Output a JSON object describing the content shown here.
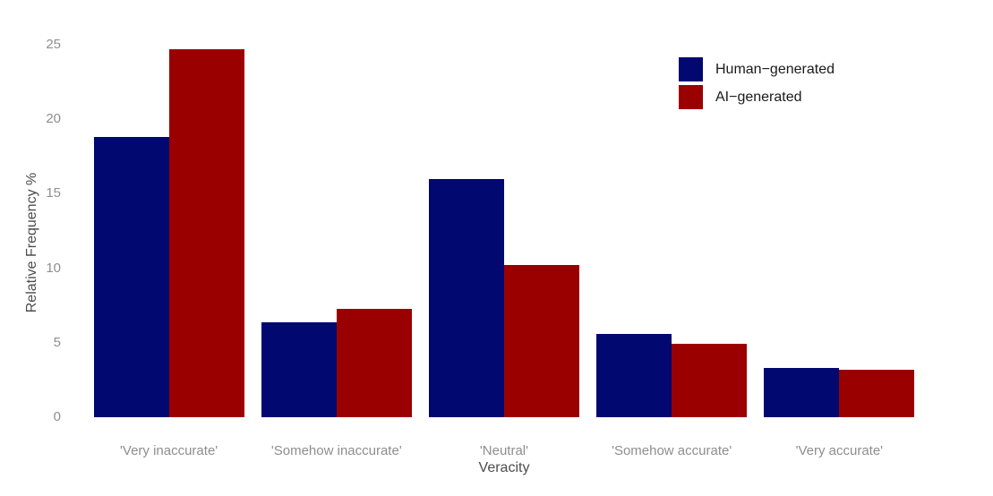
{
  "chart_data": {
    "type": "bar",
    "title": "",
    "xlabel": "Veracity",
    "ylabel": "Relative Frequency %",
    "categories": [
      "'Very inaccurate'",
      "'Somehow inaccurate'",
      "'Neutral'",
      "'Somehow accurate'",
      "'Very accurate'"
    ],
    "series": [
      {
        "name": "Human−generated",
        "color": "#010870",
        "values": [
          18.8,
          6.4,
          16.0,
          5.6,
          3.3
        ]
      },
      {
        "name": "AI−generated",
        "color": "#9B0000",
        "values": [
          24.7,
          7.3,
          10.2,
          4.9,
          3.2
        ]
      }
    ],
    "ylim": [
      0,
      25
    ],
    "yticks": [
      0,
      5,
      10,
      15,
      20,
      25
    ],
    "grid": false,
    "legend_position": "top-right",
    "axis_text_color": "#8e8e8e",
    "axis_title_color": "#4d4d4d",
    "legend_text_color": "#1a1a1a",
    "background_color": "#ffffff"
  }
}
